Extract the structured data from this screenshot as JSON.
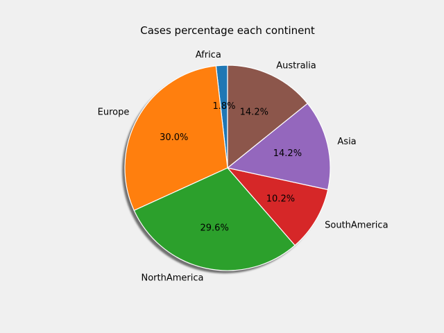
{
  "chart_data": {
    "type": "pie",
    "title": "Cases percentage each continent",
    "categories": [
      "Africa",
      "Europe",
      "NorthAmerica",
      "SouthAmerica",
      "Asia",
      "Australia"
    ],
    "values": [
      1.8,
      30.0,
      29.6,
      10.2,
      14.2,
      14.2
    ],
    "value_labels": [
      "1.8%",
      "30.0%",
      "29.6%",
      "10.2%",
      "14.2%",
      "14.2%"
    ],
    "colors": [
      "#1f77b4",
      "#ff7f0e",
      "#2ca02c",
      "#d62728",
      "#9467bd",
      "#8c564b"
    ],
    "start_angle_deg": 90,
    "direction": "counterclockwise",
    "shadow": true,
    "background_color": "#f0f0f0"
  }
}
